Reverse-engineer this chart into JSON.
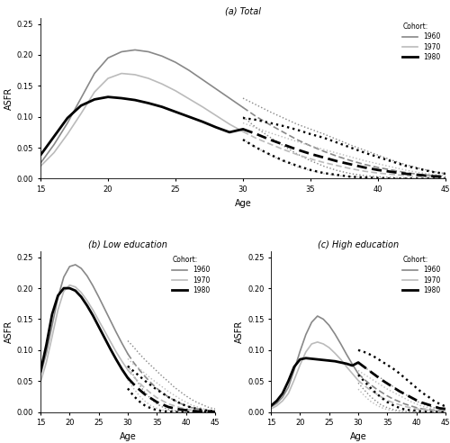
{
  "title_a": "(a) Total",
  "title_b": "(b) Low education",
  "title_c": "(c) High education",
  "xlabel": "Age",
  "ylabel": "ASFR",
  "legend_title": "Cohort:",
  "ages_obs": [
    15,
    16,
    17,
    18,
    19,
    20,
    21,
    22,
    23,
    24,
    25,
    26,
    27,
    28,
    29,
    30
  ],
  "ages_fore": [
    30,
    31,
    32,
    33,
    34,
    35,
    36,
    37,
    38,
    39,
    40,
    41,
    42,
    43,
    44,
    45
  ],
  "total_1960_obs": [
    0.025,
    0.055,
    0.09,
    0.13,
    0.17,
    0.195,
    0.205,
    0.208,
    0.205,
    0.198,
    0.188,
    0.175,
    0.16,
    0.145,
    0.13,
    0.115
  ],
  "total_1960_fore_mean": [
    0.115,
    0.1,
    0.087,
    0.075,
    0.063,
    0.053,
    0.044,
    0.036,
    0.029,
    0.023,
    0.018,
    0.014,
    0.01,
    0.007,
    0.005,
    0.003
  ],
  "total_1960_fore_lo": [
    0.1,
    0.082,
    0.067,
    0.053,
    0.04,
    0.029,
    0.02,
    0.013,
    0.008,
    0.005,
    0.003,
    0.002,
    0.001,
    0.0,
    0.0,
    0.0
  ],
  "total_1960_fore_hi": [
    0.13,
    0.119,
    0.108,
    0.098,
    0.088,
    0.08,
    0.072,
    0.063,
    0.054,
    0.046,
    0.038,
    0.03,
    0.023,
    0.017,
    0.012,
    0.008
  ],
  "total_1970_obs": [
    0.02,
    0.042,
    0.072,
    0.105,
    0.14,
    0.162,
    0.17,
    0.168,
    0.162,
    0.153,
    0.142,
    0.129,
    0.116,
    0.102,
    0.088,
    0.076
  ],
  "total_1970_fore_mean": [
    0.076,
    0.065,
    0.056,
    0.047,
    0.039,
    0.032,
    0.026,
    0.021,
    0.016,
    0.012,
    0.009,
    0.007,
    0.005,
    0.003,
    0.002,
    0.001
  ],
  "total_1970_fore_lo": [
    0.063,
    0.05,
    0.038,
    0.028,
    0.019,
    0.013,
    0.008,
    0.005,
    0.003,
    0.002,
    0.001,
    0.0,
    0.0,
    0.0,
    0.0,
    0.0
  ],
  "total_1970_fore_hi": [
    0.09,
    0.082,
    0.074,
    0.067,
    0.06,
    0.053,
    0.047,
    0.041,
    0.035,
    0.029,
    0.024,
    0.019,
    0.014,
    0.01,
    0.007,
    0.005
  ],
  "total_1980_obs": [
    0.038,
    0.068,
    0.098,
    0.118,
    0.128,
    0.132,
    0.13,
    0.127,
    0.122,
    0.116,
    0.108,
    0.1,
    0.092,
    0.083,
    0.075,
    0.08
  ],
  "total_1980_fore_mean": [
    0.08,
    0.072,
    0.063,
    0.055,
    0.047,
    0.04,
    0.034,
    0.028,
    0.023,
    0.018,
    0.014,
    0.011,
    0.008,
    0.006,
    0.004,
    0.003
  ],
  "total_1980_fore_lo": [
    0.063,
    0.05,
    0.039,
    0.029,
    0.021,
    0.014,
    0.009,
    0.006,
    0.003,
    0.002,
    0.001,
    0.0,
    0.0,
    0.0,
    0.0,
    0.0
  ],
  "total_1980_fore_hi": [
    0.098,
    0.095,
    0.09,
    0.085,
    0.079,
    0.072,
    0.066,
    0.058,
    0.05,
    0.042,
    0.035,
    0.028,
    0.021,
    0.016,
    0.011,
    0.008
  ],
  "low_1960_obs": [
    0.06,
    0.095,
    0.14,
    0.185,
    0.218,
    0.235,
    0.238,
    0.232,
    0.22,
    0.204,
    0.186,
    0.167,
    0.148,
    0.129,
    0.111,
    0.094
  ],
  "low_1960_fore_mean": [
    0.094,
    0.08,
    0.068,
    0.057,
    0.047,
    0.038,
    0.031,
    0.024,
    0.019,
    0.014,
    0.01,
    0.007,
    0.005,
    0.004,
    0.002,
    0.002
  ],
  "low_1960_fore_lo": [
    0.075,
    0.059,
    0.044,
    0.031,
    0.021,
    0.013,
    0.008,
    0.004,
    0.002,
    0.001,
    0.0,
    0.0,
    0.0,
    0.0,
    0.0,
    0.0
  ],
  "low_1960_fore_hi": [
    0.115,
    0.105,
    0.094,
    0.084,
    0.075,
    0.066,
    0.057,
    0.049,
    0.04,
    0.033,
    0.026,
    0.02,
    0.015,
    0.011,
    0.007,
    0.005
  ],
  "low_1970_obs": [
    0.048,
    0.08,
    0.122,
    0.165,
    0.195,
    0.205,
    0.202,
    0.193,
    0.18,
    0.165,
    0.148,
    0.131,
    0.114,
    0.097,
    0.082,
    0.068
  ],
  "low_1970_fore_mean": [
    0.068,
    0.057,
    0.047,
    0.038,
    0.03,
    0.023,
    0.018,
    0.013,
    0.01,
    0.007,
    0.005,
    0.003,
    0.002,
    0.002,
    0.001,
    0.001
  ],
  "low_1970_fore_lo": [
    0.052,
    0.038,
    0.026,
    0.017,
    0.01,
    0.006,
    0.003,
    0.002,
    0.001,
    0.0,
    0.0,
    0.0,
    0.0,
    0.0,
    0.0,
    0.0
  ],
  "low_1970_fore_hi": [
    0.086,
    0.077,
    0.07,
    0.062,
    0.054,
    0.047,
    0.04,
    0.033,
    0.027,
    0.021,
    0.016,
    0.011,
    0.008,
    0.005,
    0.003,
    0.002
  ],
  "low_1980_obs": [
    0.065,
    0.108,
    0.158,
    0.188,
    0.2,
    0.2,
    0.196,
    0.186,
    0.172,
    0.156,
    0.138,
    0.12,
    0.102,
    0.085,
    0.069,
    0.055
  ],
  "low_1980_fore_mean": [
    0.055,
    0.045,
    0.036,
    0.028,
    0.022,
    0.016,
    0.012,
    0.008,
    0.006,
    0.004,
    0.003,
    0.002,
    0.001,
    0.001,
    0.001,
    0.0
  ],
  "low_1980_fore_lo": [
    0.038,
    0.026,
    0.017,
    0.01,
    0.006,
    0.003,
    0.001,
    0.001,
    0.0,
    0.0,
    0.0,
    0.0,
    0.0,
    0.0,
    0.0,
    0.0
  ],
  "low_1980_fore_hi": [
    0.074,
    0.066,
    0.058,
    0.05,
    0.043,
    0.036,
    0.03,
    0.024,
    0.019,
    0.014,
    0.01,
    0.007,
    0.005,
    0.003,
    0.002,
    0.001
  ],
  "high_1960_obs": [
    0.008,
    0.014,
    0.024,
    0.04,
    0.068,
    0.098,
    0.125,
    0.145,
    0.155,
    0.15,
    0.14,
    0.126,
    0.11,
    0.093,
    0.077,
    0.062
  ],
  "high_1960_fore_mean": [
    0.062,
    0.053,
    0.045,
    0.038,
    0.032,
    0.026,
    0.021,
    0.017,
    0.013,
    0.01,
    0.007,
    0.005,
    0.004,
    0.003,
    0.002,
    0.001
  ],
  "high_1960_fore_lo": [
    0.047,
    0.036,
    0.026,
    0.018,
    0.011,
    0.007,
    0.004,
    0.002,
    0.001,
    0.001,
    0.0,
    0.0,
    0.0,
    0.0,
    0.0,
    0.0
  ],
  "high_1960_fore_hi": [
    0.079,
    0.073,
    0.066,
    0.06,
    0.054,
    0.047,
    0.041,
    0.035,
    0.029,
    0.023,
    0.018,
    0.013,
    0.01,
    0.007,
    0.005,
    0.003
  ],
  "high_1970_obs": [
    0.005,
    0.01,
    0.018,
    0.03,
    0.052,
    0.076,
    0.097,
    0.11,
    0.113,
    0.11,
    0.104,
    0.095,
    0.085,
    0.073,
    0.062,
    0.051
  ],
  "high_1970_fore_mean": [
    0.051,
    0.043,
    0.036,
    0.03,
    0.024,
    0.019,
    0.015,
    0.012,
    0.009,
    0.007,
    0.005,
    0.004,
    0.003,
    0.002,
    0.001,
    0.001
  ],
  "high_1970_fore_lo": [
    0.037,
    0.027,
    0.018,
    0.012,
    0.007,
    0.004,
    0.002,
    0.001,
    0.001,
    0.0,
    0.0,
    0.0,
    0.0,
    0.0,
    0.0,
    0.0
  ],
  "high_1970_fore_hi": [
    0.067,
    0.061,
    0.055,
    0.049,
    0.043,
    0.037,
    0.032,
    0.027,
    0.022,
    0.017,
    0.013,
    0.009,
    0.007,
    0.004,
    0.003,
    0.002
  ],
  "high_1980_obs": [
    0.01,
    0.018,
    0.03,
    0.05,
    0.073,
    0.085,
    0.087,
    0.086,
    0.085,
    0.084,
    0.083,
    0.082,
    0.08,
    0.078,
    0.075,
    0.08
  ],
  "high_1980_fore_mean": [
    0.08,
    0.073,
    0.066,
    0.059,
    0.052,
    0.046,
    0.04,
    0.034,
    0.029,
    0.024,
    0.019,
    0.015,
    0.012,
    0.009,
    0.006,
    0.005
  ],
  "high_1980_fore_lo": [
    0.06,
    0.05,
    0.04,
    0.031,
    0.023,
    0.016,
    0.011,
    0.007,
    0.004,
    0.003,
    0.002,
    0.001,
    0.0,
    0.0,
    0.0,
    0.0
  ],
  "high_1980_fore_hi": [
    0.1,
    0.097,
    0.093,
    0.088,
    0.082,
    0.076,
    0.07,
    0.063,
    0.055,
    0.047,
    0.039,
    0.031,
    0.025,
    0.018,
    0.013,
    0.009
  ],
  "ylim_a": [
    0.0,
    0.26
  ],
  "ylim_bc": [
    0.0,
    0.26
  ],
  "yticks_a": [
    0.0,
    0.05,
    0.1,
    0.15,
    0.2,
    0.25
  ],
  "yticks_bc": [
    0.0,
    0.05,
    0.1,
    0.15,
    0.2,
    0.25
  ],
  "xlim": [
    15,
    45
  ],
  "xticks": [
    15,
    20,
    25,
    30,
    35,
    40,
    45
  ],
  "color_1960": "#888888",
  "color_1970": "#bbbbbb",
  "color_1980": "#000000",
  "lw_1960": 1.2,
  "lw_1970": 1.2,
  "lw_1980": 2.0
}
